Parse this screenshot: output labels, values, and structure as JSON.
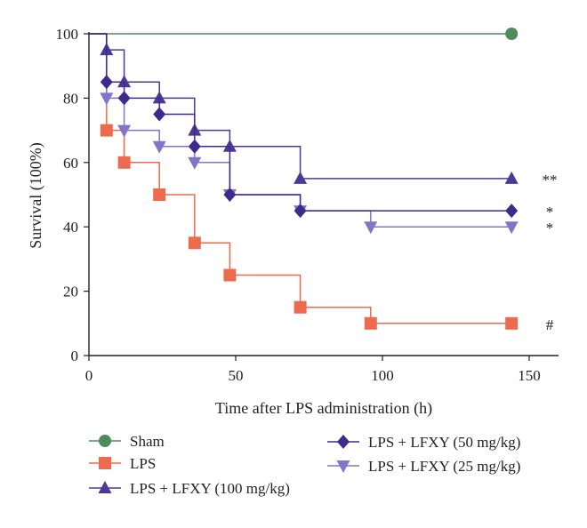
{
  "chart_data": {
    "type": "line",
    "subtype": "kaplan-meier survival (step)",
    "title": "",
    "xlabel": "Time after LPS administration (h)",
    "ylabel": "Survival (100%)",
    "xlim": [
      0,
      160
    ],
    "ylim": [
      0,
      100
    ],
    "xticks": [
      0,
      50,
      100,
      150
    ],
    "yticks": [
      0,
      20,
      40,
      60,
      80,
      100
    ],
    "grid": false,
    "legend_position": "bottom",
    "series": [
      {
        "name": "Sham",
        "color": "#4e8a5e",
        "marker": "circle",
        "x": [
          0,
          144
        ],
        "y": [
          100,
          100
        ],
        "marked_points": [
          [
            144,
            100
          ]
        ],
        "annotation": ""
      },
      {
        "name": "LPS",
        "color": "#ee6a4e",
        "marker": "square",
        "x": [
          0,
          6,
          12,
          24,
          36,
          48,
          72,
          96,
          144
        ],
        "y": [
          100,
          70,
          60,
          50,
          35,
          25,
          15,
          10,
          10
        ],
        "marked_points": [
          [
            6,
            70
          ],
          [
            12,
            60
          ],
          [
            24,
            50
          ],
          [
            36,
            35
          ],
          [
            48,
            25
          ],
          [
            72,
            15
          ],
          [
            96,
            10
          ],
          [
            144,
            10
          ]
        ],
        "annotation": "#"
      },
      {
        "name": "LPS + LFXY (100 mg/kg)",
        "color": "#4a3a96",
        "marker": "triangle-up",
        "x": [
          0,
          6,
          12,
          24,
          36,
          48,
          72,
          144
        ],
        "y": [
          100,
          95,
          85,
          80,
          70,
          65,
          55,
          55
        ],
        "marked_points": [
          [
            6,
            95
          ],
          [
            12,
            85
          ],
          [
            24,
            80
          ],
          [
            36,
            70
          ],
          [
            48,
            65
          ],
          [
            72,
            55
          ],
          [
            144,
            55
          ]
        ],
        "annotation": "**"
      },
      {
        "name": "LPS + LFXY (50 mg/kg)",
        "color": "#3e2a8e",
        "marker": "diamond",
        "x": [
          0,
          6,
          12,
          24,
          36,
          48,
          72,
          144
        ],
        "y": [
          100,
          85,
          80,
          75,
          65,
          50,
          45,
          45
        ],
        "marked_points": [
          [
            6,
            85
          ],
          [
            12,
            80
          ],
          [
            24,
            75
          ],
          [
            36,
            65
          ],
          [
            48,
            50
          ],
          [
            72,
            45
          ],
          [
            144,
            45
          ]
        ],
        "annotation": "*"
      },
      {
        "name": "LPS + LFXY (25 mg/kg)",
        "color": "#8274c8",
        "marker": "triangle-down",
        "x": [
          0,
          6,
          12,
          24,
          36,
          48,
          72,
          96,
          144
        ],
        "y": [
          100,
          80,
          70,
          65,
          60,
          50,
          45,
          40,
          40
        ],
        "marked_points": [
          [
            6,
            80
          ],
          [
            12,
            70
          ],
          [
            24,
            65
          ],
          [
            36,
            60
          ],
          [
            48,
            50
          ],
          [
            72,
            45
          ],
          [
            96,
            40
          ],
          [
            144,
            40
          ]
        ],
        "annotation": "*"
      }
    ]
  }
}
